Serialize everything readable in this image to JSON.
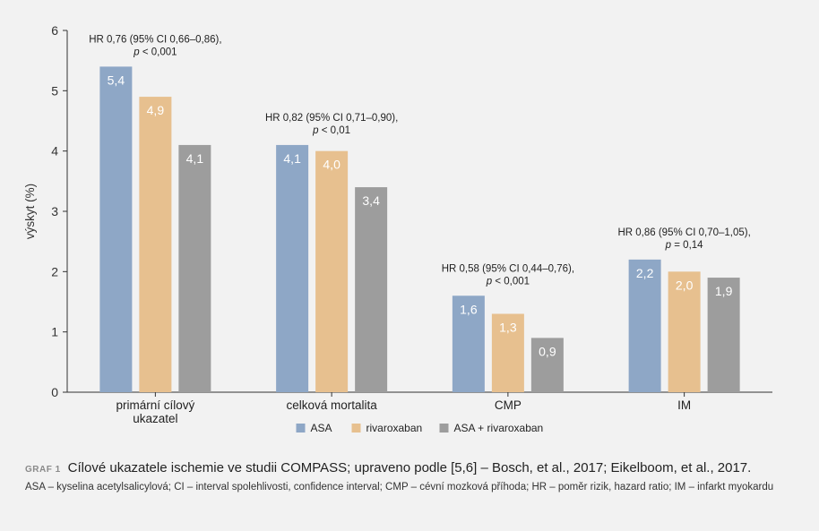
{
  "chart_data": {
    "type": "bar",
    "ylabel": "výskyt (%)",
    "ylim": [
      0,
      6
    ],
    "yticks": [
      "0",
      "1",
      "2",
      "3",
      "4",
      "5",
      "6"
    ],
    "categories": [
      [
        "primární cílový",
        "ukazatel"
      ],
      [
        "celková mortalita"
      ],
      [
        "CMP"
      ],
      [
        "IM"
      ]
    ],
    "series": [
      {
        "name": "ASA",
        "color": "#8ea7c6",
        "values": [
          5.4,
          4.1,
          1.6,
          2.2
        ],
        "labels": [
          "5,4",
          "4,1",
          "1,6",
          "2,2"
        ]
      },
      {
        "name": "rivaroxaban",
        "color": "#e7c08f",
        "values": [
          4.9,
          4.0,
          1.3,
          2.0
        ],
        "labels": [
          "4,9",
          "4,0",
          "1,3",
          "2,0"
        ]
      },
      {
        "name": "ASA + rivaroxaban",
        "color": "#9d9d9d",
        "values": [
          4.1,
          3.4,
          0.9,
          1.9
        ],
        "labels": [
          "4,1",
          "3,4",
          "0,9",
          "1,9"
        ]
      }
    ],
    "annotations": [
      {
        "line1": "HR 0,76 (95% CI 0,66–0,86),",
        "p": "p",
        "line2": " < 0,001"
      },
      {
        "line1": "HR 0,82 (95% CI 0,71–0,90),",
        "p": "p",
        "line2": " < 0,01"
      },
      {
        "line1": "HR 0,58 (95% CI 0,44–0,76),",
        "p": "p",
        "line2": " < 0,001"
      },
      {
        "line1": "HR 0,86 (95% CI 0,70–1,05),",
        "p": "p",
        "line2": " = 0,14"
      }
    ],
    "legend_position": "bottom-center",
    "grid": false
  },
  "caption": {
    "label": "GRAF 1",
    "title": "Cílové ukazatele ischemie ve studii COMPASS; upraveno podle [5,6] – Bosch, et al., 2017; Eikelboom, et al., 2017.",
    "note": "ASA – kyselina acetylsalicylová; CI – interval spolehlivosti, confidence interval; CMP – cévní mozková příhoda; HR – poměr rizik, hazard ratio; IM – infarkt myokardu"
  }
}
